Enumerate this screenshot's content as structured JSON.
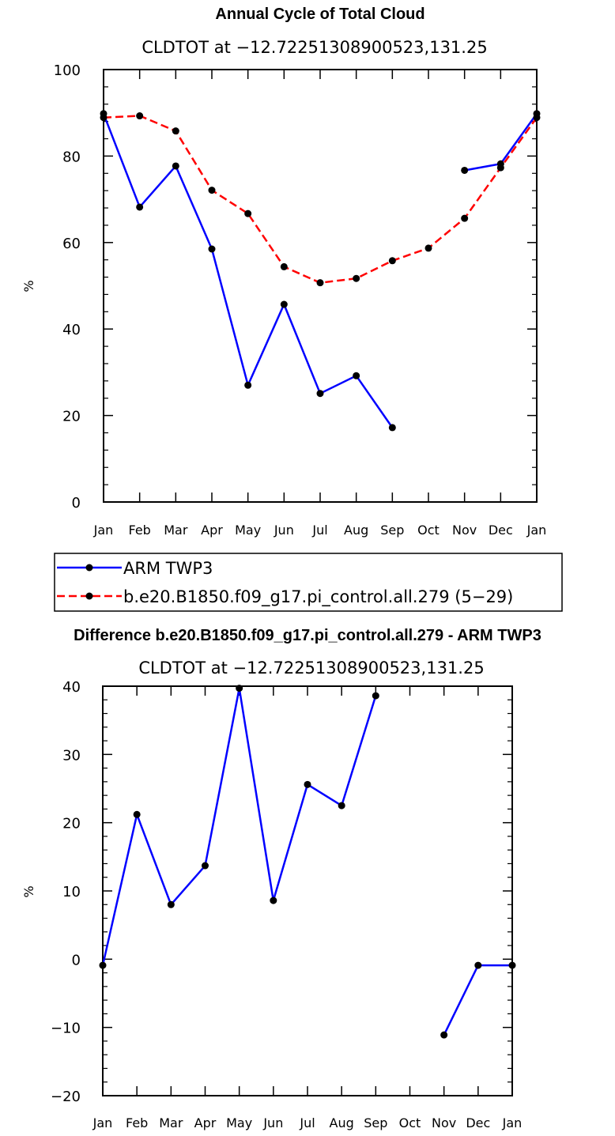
{
  "chart_data": [
    {
      "type": "line",
      "title": "Annual Cycle of Total Cloud",
      "subtitle": "CLDTOT at −12.72251308900523,131.25",
      "xlabel": "",
      "ylabel": "%",
      "categories": [
        "Jan",
        "Feb",
        "Mar",
        "Apr",
        "May",
        "Jun",
        "Jul",
        "Aug",
        "Sep",
        "Oct",
        "Nov",
        "Dec",
        "Jan"
      ],
      "ylim": [
        0,
        100
      ],
      "yticks": [
        0,
        20,
        40,
        60,
        80,
        100
      ],
      "ytick_labels": [
        "0",
        "20",
        "40",
        "60",
        "80",
        "100"
      ],
      "grid": false,
      "legend_position": "below",
      "series": [
        {
          "name": "ARM TWP3",
          "color": "#0000ff",
          "dash": "solid",
          "values": [
            89.8,
            68.2,
            77.7,
            58.5,
            27.0,
            45.7,
            25.1,
            29.2,
            17.2,
            null,
            76.7,
            78.2,
            89.8
          ]
        },
        {
          "name": "b.e20.B1850.f09_g17.pi_control.all.279 (5−29)",
          "color": "#ff0000",
          "dash": "dashed",
          "values": [
            88.9,
            89.3,
            85.8,
            72.1,
            66.7,
            54.4,
            50.7,
            51.7,
            55.8,
            58.7,
            65.6,
            77.3,
            88.9
          ]
        }
      ]
    },
    {
      "type": "line",
      "title": "Difference b.e20.B1850.f09_g17.pi_control.all.279 - ARM TWP3",
      "subtitle": "CLDTOT at −12.72251308900523,131.25",
      "xlabel": "",
      "ylabel": "%",
      "categories": [
        "Jan",
        "Feb",
        "Mar",
        "Apr",
        "May",
        "Jun",
        "Jul",
        "Aug",
        "Sep",
        "Oct",
        "Nov",
        "Dec",
        "Jan"
      ],
      "ylim": [
        -20,
        40
      ],
      "yticks": [
        -20,
        -10,
        0,
        10,
        20,
        30,
        40
      ],
      "ytick_labels": [
        "−20",
        "−10",
        "0",
        "10",
        "20",
        "30",
        "40"
      ],
      "grid": false,
      "series": [
        {
          "name": "difference",
          "color": "#0000ff",
          "dash": "solid",
          "values": [
            -0.9,
            21.2,
            8.0,
            13.7,
            39.7,
            8.6,
            25.6,
            22.5,
            38.6,
            null,
            -11.1,
            -0.9,
            -0.9
          ]
        }
      ]
    }
  ]
}
